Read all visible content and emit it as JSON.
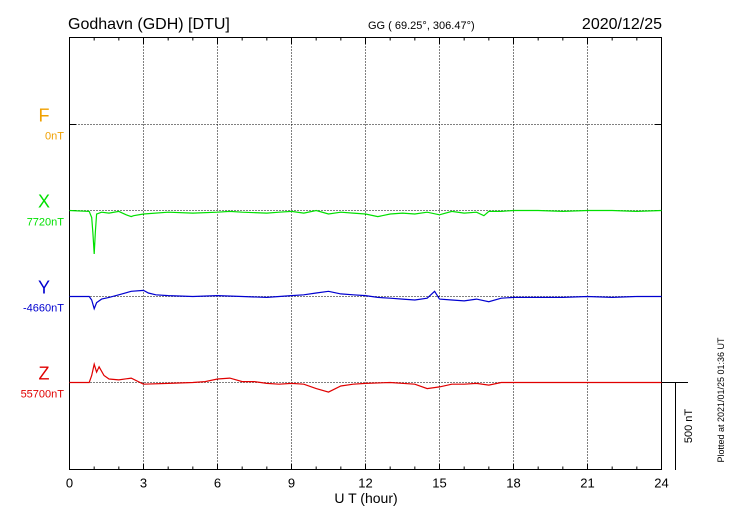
{
  "header": {
    "station": "Godhavn (GDH)  [DTU]",
    "coords": "GG ( 69.25°, 306.47°)",
    "date": "2020/12/25"
  },
  "side_note": "Plotted at 2021/01/25 01:36 UT",
  "scale_label": "500 nT",
  "chart_data": {
    "type": "line",
    "xlabel": "U T (hour)",
    "xlim": [
      0,
      24
    ],
    "x_ticks": [
      0,
      3,
      6,
      9,
      12,
      15,
      18,
      21,
      24
    ],
    "x_tick_labels": [
      "0",
      "3",
      "6",
      "9",
      "12",
      "15",
      "18",
      "21",
      "24"
    ],
    "scale_bar_nT": 500,
    "grid": true,
    "series": [
      {
        "name": "F",
        "baseline_label": "0nT",
        "color": "#f0a000",
        "values": []
      },
      {
        "name": "X",
        "baseline_label": "7720nT",
        "color": "#00e000",
        "x": [
          0,
          0.8,
          0.9,
          0.95,
          1.0,
          1.05,
          1.1,
          1.3,
          1.6,
          2.0,
          2.3,
          2.5,
          2.6,
          3.0,
          4.0,
          5.0,
          6.0,
          6.5,
          7.0,
          8.0,
          8.5,
          9.0,
          9.5,
          10.0,
          10.5,
          11.0,
          11.5,
          12.0,
          12.5,
          13.0,
          13.5,
          14.0,
          14.5,
          15.0,
          15.5,
          16.0,
          16.5,
          16.8,
          17.0,
          17.5,
          18.0,
          19.0,
          20.0,
          21.0,
          22.0,
          23.0,
          24.0
        ],
        "values": [
          0,
          -5,
          -40,
          -130,
          -250,
          -120,
          -20,
          -10,
          -15,
          -5,
          -25,
          -35,
          -30,
          -20,
          -10,
          -15,
          -10,
          -5,
          -10,
          -15,
          -10,
          -5,
          -15,
          0,
          -20,
          -10,
          -15,
          -20,
          -35,
          -20,
          -15,
          -20,
          -10,
          -25,
          -5,
          -15,
          -10,
          -30,
          -5,
          -5,
          0,
          0,
          -5,
          0,
          0,
          -5,
          0
        ]
      },
      {
        "name": "Y",
        "baseline_label": "-4660nT",
        "color": "#0000d0",
        "x": [
          0,
          0.8,
          0.9,
          1.0,
          1.1,
          1.3,
          1.6,
          2.0,
          2.5,
          3.0,
          3.2,
          3.5,
          4.0,
          5.0,
          6.0,
          7.0,
          8.0,
          9.0,
          9.5,
          10.0,
          10.5,
          11.0,
          11.5,
          12.0,
          12.5,
          13.0,
          13.5,
          14.0,
          14.5,
          14.8,
          15.0,
          15.5,
          16.0,
          16.5,
          17.0,
          17.5,
          18.0,
          19.0,
          20.0,
          21.0,
          22.0,
          23.0,
          24.0
        ],
        "values": [
          0,
          0,
          -20,
          -70,
          -35,
          -15,
          -5,
          10,
          30,
          35,
          20,
          10,
          5,
          0,
          5,
          0,
          -5,
          5,
          10,
          20,
          30,
          15,
          10,
          5,
          -5,
          -10,
          -15,
          -20,
          -10,
          30,
          -15,
          -20,
          -25,
          -15,
          -30,
          -10,
          -5,
          -5,
          -5,
          0,
          -5,
          0,
          0
        ]
      },
      {
        "name": "Z",
        "baseline_label": "55700nT",
        "color": "#e00000",
        "x": [
          0,
          0.8,
          0.9,
          1.0,
          1.1,
          1.2,
          1.4,
          1.6,
          2.0,
          2.5,
          3.0,
          4.0,
          5.0,
          5.5,
          6.0,
          6.5,
          7.0,
          7.5,
          8.0,
          8.5,
          9.0,
          9.5,
          10.0,
          10.5,
          11.0,
          11.5,
          12.0,
          13.0,
          14.0,
          14.5,
          15.0,
          15.5,
          16.0,
          16.5,
          17.0,
          17.5,
          18.0,
          19.0,
          20.0,
          21.0,
          22.0,
          23.0,
          24.0
        ],
        "values": [
          0,
          0,
          40,
          105,
          60,
          90,
          40,
          20,
          15,
          25,
          -10,
          -5,
          0,
          5,
          20,
          25,
          5,
          5,
          -5,
          -10,
          -5,
          -10,
          -35,
          -55,
          -20,
          -10,
          -5,
          0,
          -10,
          -35,
          -25,
          -10,
          -10,
          -5,
          -15,
          0,
          0,
          0,
          0,
          0,
          0,
          0,
          0
        ]
      }
    ]
  }
}
